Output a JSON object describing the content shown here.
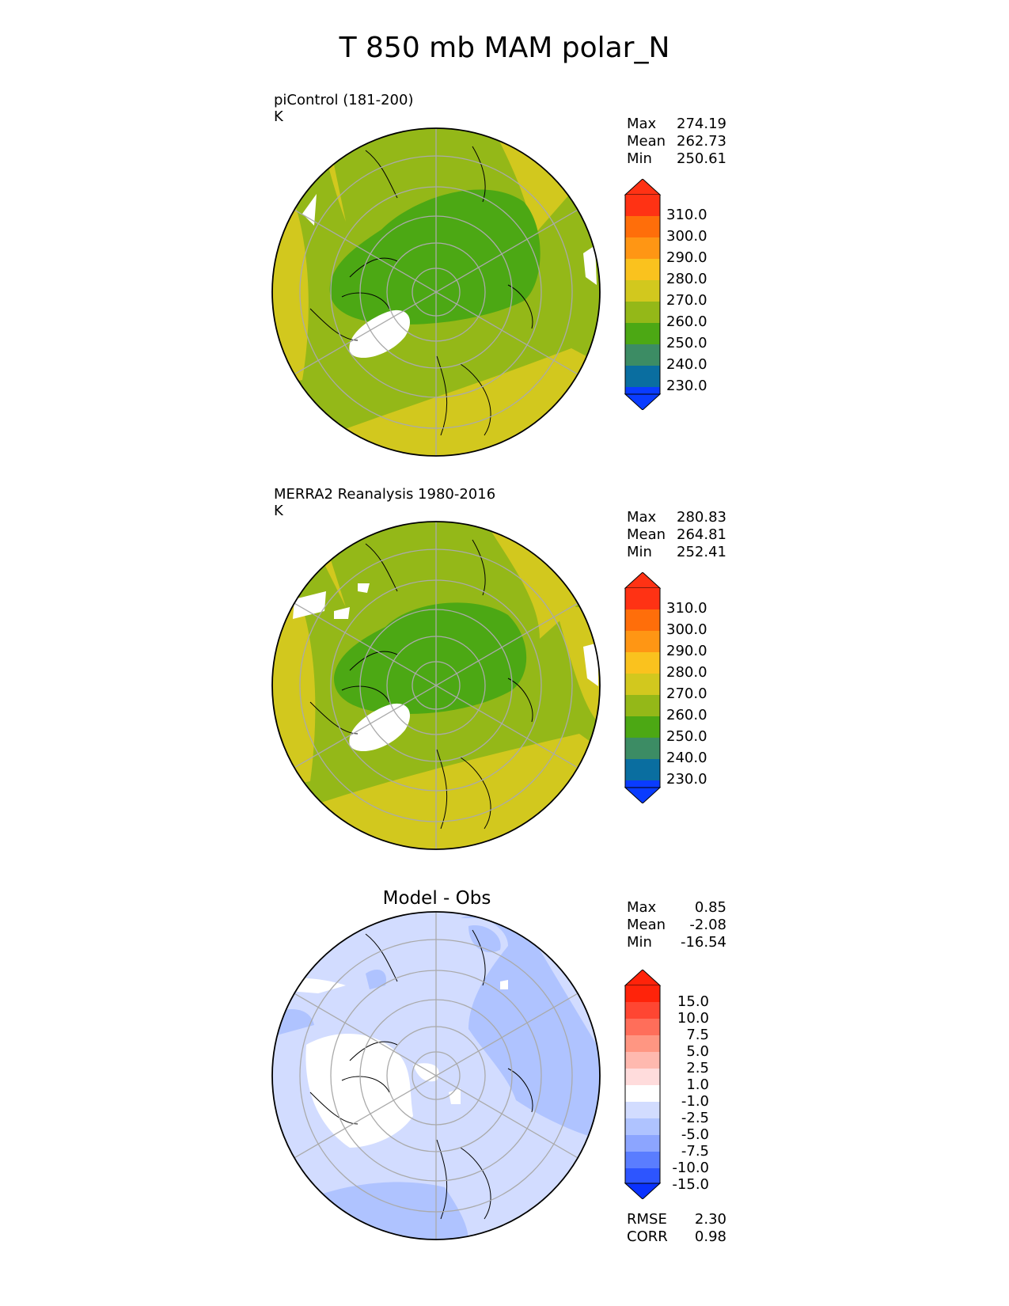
{
  "title": "T 850 mb MAM polar_N",
  "panels": [
    {
      "label_line1": "piControl (181-200)",
      "label_line2": "K",
      "stats": [
        {
          "label": "Max",
          "value": "274.19"
        },
        {
          "label": "Mean",
          "value": "262.73"
        },
        {
          "label": "Min",
          "value": "250.61"
        }
      ],
      "colorbar": {
        "colors": [
          "#0a3cff",
          "#0a6ea0",
          "#3c8c64",
          "#4ca814",
          "#94b818",
          "#d2c81e",
          "#fac21e",
          "#ff9614",
          "#ff6e0a",
          "#ff3214"
        ],
        "ticks": [
          "230.0",
          "240.0",
          "250.0",
          "260.0",
          "270.0",
          "280.0",
          "290.0",
          "300.0",
          "310.0"
        ]
      }
    },
    {
      "label_line1": "MERRA2 Reanalysis 1980-2016",
      "label_line2": "K",
      "stats": [
        {
          "label": "Max",
          "value": "280.83"
        },
        {
          "label": "Mean",
          "value": "264.81"
        },
        {
          "label": "Min",
          "value": "252.41"
        }
      ],
      "colorbar": {
        "colors": [
          "#0a3cff",
          "#0a6ea0",
          "#3c8c64",
          "#4ca814",
          "#94b818",
          "#d2c81e",
          "#fac21e",
          "#ff9614",
          "#ff6e0a",
          "#ff3214"
        ],
        "ticks": [
          "230.0",
          "240.0",
          "250.0",
          "260.0",
          "270.0",
          "280.0",
          "290.0",
          "300.0",
          "310.0"
        ]
      }
    },
    {
      "title": "Model - Obs",
      "stats": [
        {
          "label": "Max",
          "value": "0.85"
        },
        {
          "label": "Mean",
          "value": "-2.08"
        },
        {
          "label": "Min",
          "value": "-16.54"
        }
      ],
      "extra_stats": [
        {
          "label": "RMSE",
          "value": "2.30"
        },
        {
          "label": "CORR",
          "value": "0.98"
        }
      ],
      "colorbar": {
        "colors": [
          "#0a32ff",
          "#2d55ff",
          "#5a7dff",
          "#8ca5ff",
          "#afc3ff",
          "#d2dcff",
          "#ffffff",
          "#ffdcdc",
          "#ffb9af",
          "#ff9682",
          "#ff6e5a",
          "#ff4632",
          "#ff230a"
        ],
        "ticks": [
          "-15.0",
          "-10.0",
          "-7.5",
          "-5.0",
          "-2.5",
          "-1.0",
          "1.0",
          "2.5",
          "5.0",
          "7.5",
          "10.0",
          "15.0"
        ]
      }
    }
  ]
}
